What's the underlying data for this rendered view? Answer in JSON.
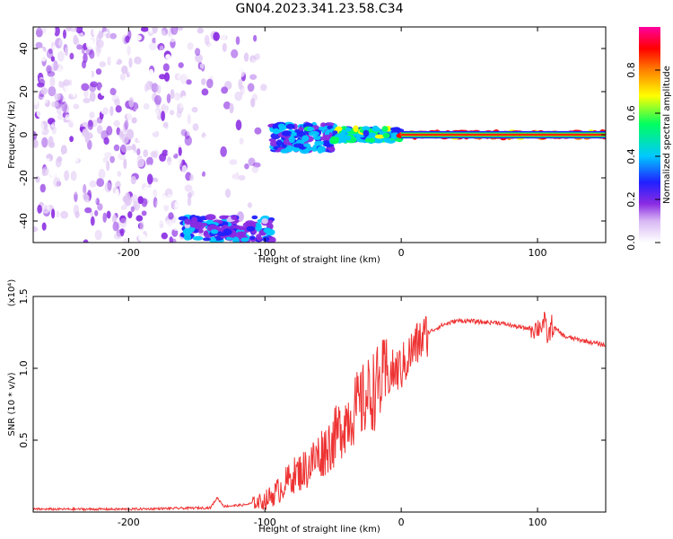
{
  "title": "GN04.2023.341.23.58.C34",
  "colors": {
    "background": "#ffffff",
    "axes": "#000000",
    "snr_line": "#ee3333",
    "colormap": [
      "#ffffff",
      "#e0c8f4",
      "#8a2be2",
      "#2020ff",
      "#00c8ff",
      "#00ff60",
      "#ffff00",
      "#ff8000",
      "#ff0000"
    ]
  },
  "chart_data": [
    {
      "type": "heatmap",
      "xlabel": "Height of straight line (km)",
      "ylabel": "Frequency (Hz)",
      "xlim": [
        -270,
        150
      ],
      "ylim": [
        -50,
        50
      ],
      "xticks": [
        -200,
        -100,
        0,
        100
      ],
      "yticks": [
        -40,
        -20,
        0,
        20,
        40
      ],
      "colorbar": {
        "label": "Normalized spectral amplitude",
        "range": [
          0,
          1
        ],
        "ticks": [
          0.0,
          0.2,
          0.4,
          0.6,
          0.8
        ]
      },
      "regions": [
        {
          "x": [
            -270,
            -100
          ],
          "y": [
            -50,
            50
          ],
          "level": 0.1,
          "desc": "sparse broadband noise"
        },
        {
          "x": [
            -160,
            -95
          ],
          "y": [
            -49,
            -38
          ],
          "level": 0.35
        },
        {
          "x": [
            -95,
            -50
          ],
          "y": [
            -8,
            5
          ],
          "level": 0.4
        },
        {
          "x": [
            -50,
            0
          ],
          "y": [
            -3,
            3
          ],
          "level": 0.55
        },
        {
          "x": [
            0,
            150
          ],
          "y": [
            -1,
            1
          ],
          "level": 0.95
        }
      ]
    },
    {
      "type": "line",
      "xlabel": "Height of straight line (km)",
      "ylabel": "SNR (10 * v/v)",
      "y_multiplier": "(x10⁴)",
      "xlim": [
        -270,
        150
      ],
      "ylim": [
        0,
        1.5
      ],
      "xticks": [
        -200,
        -100,
        0,
        100
      ],
      "yticks": [
        0.5,
        1.0,
        1.5
      ],
      "series": [
        {
          "x": [
            -270,
            -200,
            -140,
            -135,
            -130,
            -115,
            -100,
            -90,
            -80,
            -70,
            -60,
            -50,
            -40,
            -30,
            -20,
            -15,
            -10,
            0,
            10,
            20,
            30,
            40,
            50,
            60,
            70,
            80,
            90,
            100,
            105,
            108,
            110,
            120,
            130,
            140,
            150
          ],
          "y": [
            0.02,
            0.02,
            0.03,
            0.1,
            0.04,
            0.05,
            0.08,
            0.15,
            0.25,
            0.3,
            0.4,
            0.5,
            0.65,
            0.75,
            0.85,
            0.9,
            0.95,
            1.0,
            1.15,
            1.25,
            1.3,
            1.33,
            1.33,
            1.32,
            1.32,
            1.3,
            1.28,
            1.28,
            1.32,
            1.2,
            1.3,
            1.22,
            1.2,
            1.18,
            1.16
          ]
        }
      ]
    }
  ]
}
